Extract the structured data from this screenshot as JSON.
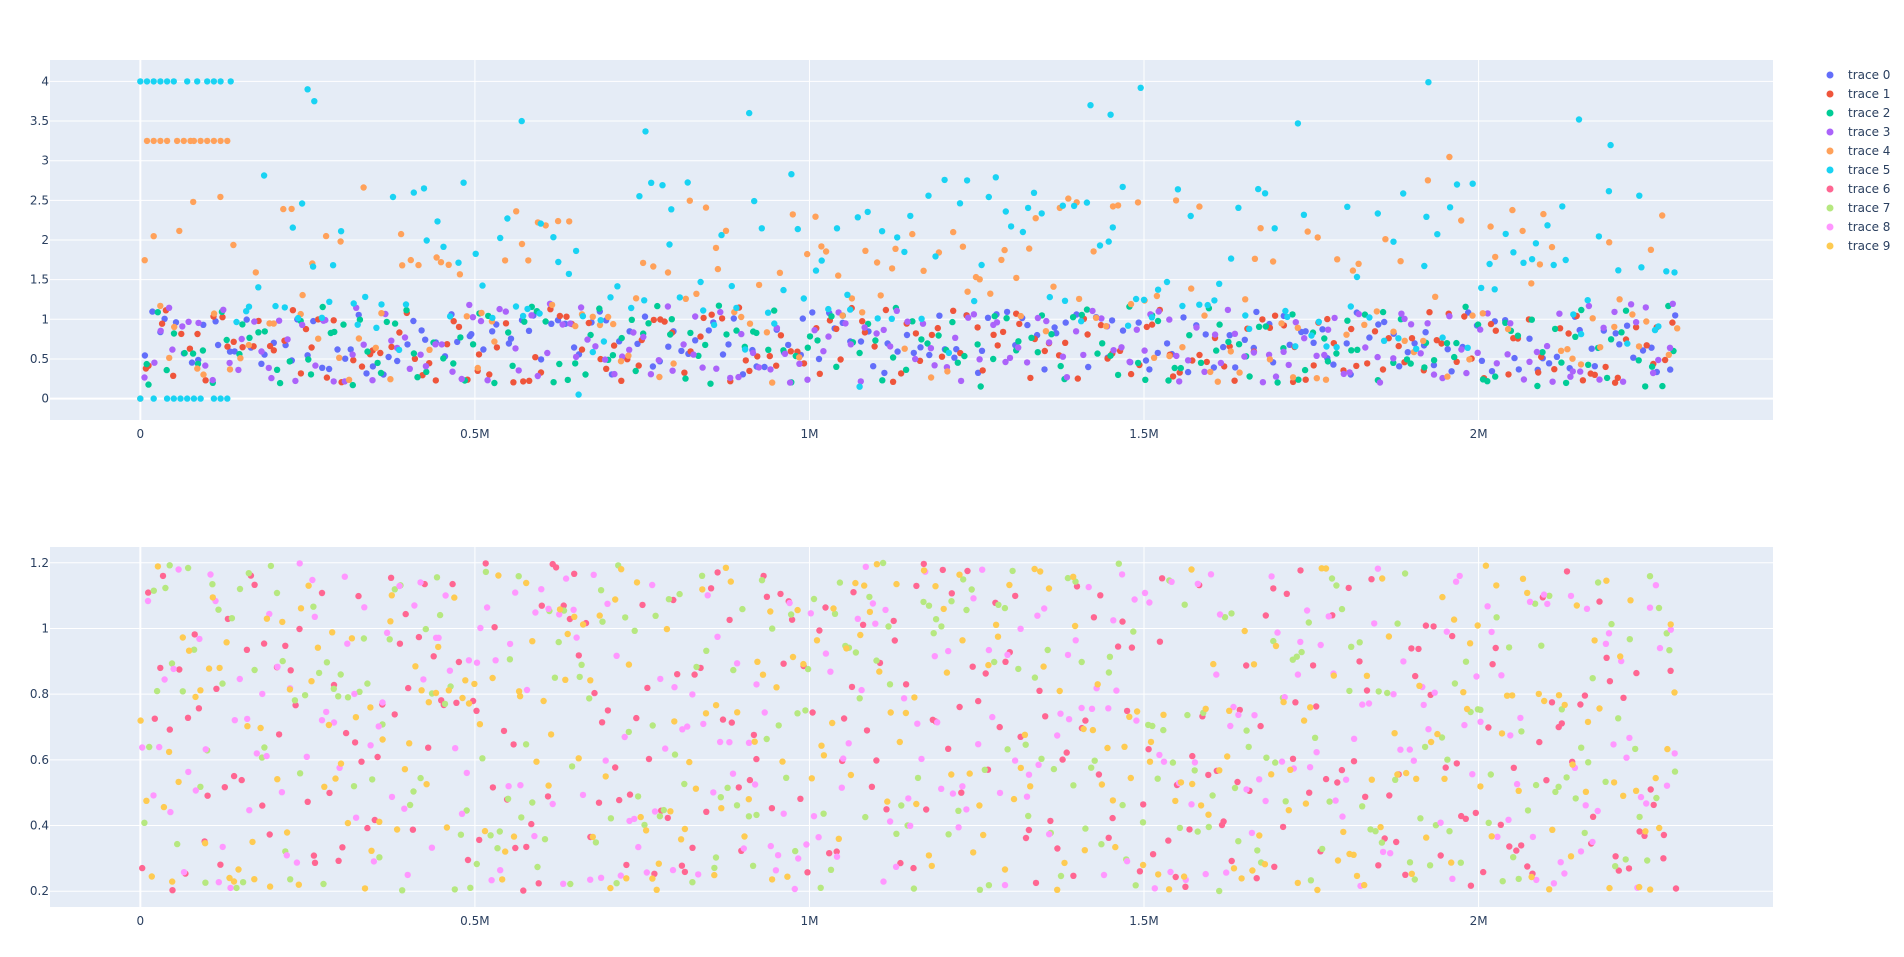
{
  "chart_data": [
    {
      "type": "scatter",
      "title": "",
      "xlabel": "",
      "ylabel": "",
      "xlim": [
        -135000,
        2440000
      ],
      "ylim": [
        -0.27,
        4.27
      ],
      "xticks": [
        0,
        500000,
        1000000,
        1500000,
        2000000
      ],
      "xtick_labels": [
        "0",
        "0.5M",
        "1M",
        "1.5M",
        "2M"
      ],
      "yticks": [
        0,
        0.5,
        1,
        1.5,
        2,
        2.5,
        3,
        3.5,
        4
      ],
      "ytick_labels": [
        "0",
        "0.5",
        "1",
        "1.5",
        "2",
        "2.5",
        "3",
        "3.5",
        "4"
      ],
      "grid": true,
      "background": "#E5ECF6",
      "series": [
        {
          "name": "trace 0",
          "color": "#636efa",
          "x_range": [
            0,
            2300000
          ],
          "y_range": [
            0.3,
            1.1
          ],
          "approx_points": 200
        },
        {
          "name": "trace 1",
          "color": "#EF553B",
          "x_range": [
            0,
            2300000
          ],
          "y_range": [
            0.2,
            1.15
          ],
          "approx_points": 200
        },
        {
          "name": "trace 2",
          "color": "#00cc96",
          "x_range": [
            0,
            2300000
          ],
          "y_range": [
            0.15,
            1.2
          ],
          "approx_points": 200
        },
        {
          "name": "trace 3",
          "color": "#ab63fa",
          "x_range": [
            0,
            2300000
          ],
          "y_range": [
            0.2,
            1.2
          ],
          "approx_points": 200
        },
        {
          "name": "trace 4",
          "color": "#FFA15A",
          "x_range": [
            0,
            2300000
          ],
          "y_range": [
            0.3,
            3.2
          ],
          "approx_points": 200,
          "notes_points": [
            [
              0,
              0
            ],
            [
              10000,
              3.25
            ],
            [
              20000,
              3.25
            ],
            [
              30000,
              3.25
            ],
            [
              40000,
              3.25
            ],
            [
              55000,
              3.25
            ],
            [
              65000,
              3.25
            ],
            [
              75000,
              3.25
            ],
            [
              80000,
              3.25
            ],
            [
              90000,
              3.25
            ],
            [
              100000,
              3.25
            ],
            [
              110000,
              3.25
            ],
            [
              120000,
              3.25
            ],
            [
              130000,
              3.25
            ]
          ]
        },
        {
          "name": "trace 5",
          "color": "#19d3f3",
          "x_range": [
            0,
            2300000
          ],
          "y_range": [
            0.5,
            3.5
          ],
          "approx_points": 200,
          "outliers": [
            [
              0,
              4
            ],
            [
              10000,
              4
            ],
            [
              20000,
              4
            ],
            [
              30000,
              4
            ],
            [
              40000,
              4
            ],
            [
              50000,
              4
            ],
            [
              70000,
              4
            ],
            [
              85000,
              4
            ],
            [
              100000,
              4
            ],
            [
              110000,
              4
            ],
            [
              120000,
              4
            ],
            [
              135000,
              4
            ],
            [
              0,
              0
            ],
            [
              20000,
              0
            ],
            [
              40000,
              0
            ],
            [
              50000,
              0
            ],
            [
              60000,
              0
            ],
            [
              70000,
              0
            ],
            [
              80000,
              0
            ],
            [
              90000,
              0
            ],
            [
              110000,
              0
            ],
            [
              120000,
              0
            ],
            [
              130000,
              0
            ],
            [
              250000,
              3.9
            ],
            [
              260000,
              3.75
            ],
            [
              1495000,
              3.92
            ],
            [
              1925000,
              3.99
            ],
            [
              910000,
              3.6
            ],
            [
              570000,
              3.5
            ],
            [
              1450000,
              3.58
            ],
            [
              1730000,
              3.47
            ],
            [
              2150000,
              3.52
            ],
            [
              1420000,
              3.7
            ],
            [
              655000,
              0.05
            ],
            [
              1075000,
              0.15
            ],
            [
              755000,
              3.37
            ]
          ]
        }
      ]
    },
    {
      "type": "scatter",
      "title": "",
      "xlabel": "",
      "ylabel": "",
      "xlim": [
        -135000,
        2440000
      ],
      "ylim": [
        0.152,
        1.248
      ],
      "xticks": [
        0,
        500000,
        1000000,
        1500000,
        2000000
      ],
      "xtick_labels": [
        "0",
        "0.5M",
        "1M",
        "1.5M",
        "2M"
      ],
      "yticks": [
        0.2,
        0.4,
        0.6,
        0.8,
        1,
        1.2
      ],
      "ytick_labels": [
        "0.2",
        "0.4",
        "0.6",
        "0.8",
        "1",
        "1.2"
      ],
      "grid": true,
      "background": "#E5ECF6",
      "series": [
        {
          "name": "trace 6",
          "color": "#FF6692",
          "x_range": [
            0,
            2300000
          ],
          "y_range": [
            0.2,
            1.2
          ],
          "approx_points": 300
        },
        {
          "name": "trace 7",
          "color": "#B6E880",
          "x_range": [
            0,
            2300000
          ],
          "y_range": [
            0.2,
            1.2
          ],
          "approx_points": 300
        },
        {
          "name": "trace 8",
          "color": "#FF97FF",
          "x_range": [
            0,
            2300000
          ],
          "y_range": [
            0.2,
            1.2
          ],
          "approx_points": 300
        },
        {
          "name": "trace 9",
          "color": "#FECB52",
          "x_range": [
            0,
            2300000
          ],
          "y_range": [
            0.2,
            1.2
          ],
          "approx_points": 300
        }
      ]
    }
  ],
  "legend": {
    "position": "top-right",
    "items": [
      {
        "label": "trace 0",
        "color": "#636efa"
      },
      {
        "label": "trace 1",
        "color": "#EF553B"
      },
      {
        "label": "trace 2",
        "color": "#00cc96"
      },
      {
        "label": "trace 3",
        "color": "#ab63fa"
      },
      {
        "label": "trace 4",
        "color": "#FFA15A"
      },
      {
        "label": "trace 5",
        "color": "#19d3f3"
      },
      {
        "label": "trace 6",
        "color": "#FF6692"
      },
      {
        "label": "trace 7",
        "color": "#B6E880"
      },
      {
        "label": "trace 8",
        "color": "#FF97FF"
      },
      {
        "label": "trace 9",
        "color": "#FECB52"
      }
    ]
  }
}
